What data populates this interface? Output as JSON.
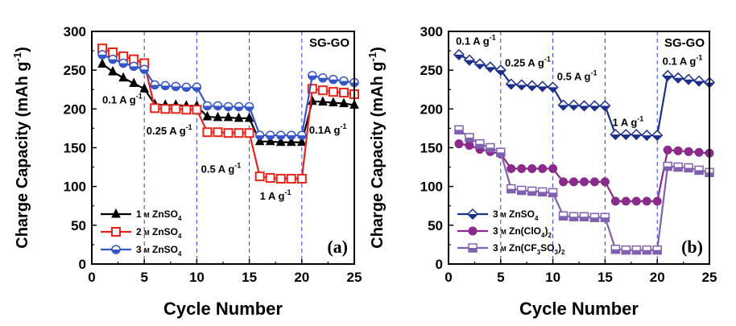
{
  "chart_data": [
    {
      "type": "line",
      "panel_label": "(a)",
      "xlabel": "Cycle Number",
      "ylabel": "Charge Capacity (mAh g",
      "ylabel_sup": "-1",
      "ylabel_end": ")",
      "xlim": [
        0,
        25
      ],
      "ylim": [
        0,
        300
      ],
      "xticks": [
        0,
        5,
        10,
        15,
        20,
        25
      ],
      "yticks": [
        0,
        50,
        100,
        150,
        200,
        250,
        300
      ],
      "vlines": [
        5,
        10,
        15,
        20
      ],
      "corner_text": "SG-GO",
      "annotations": [
        {
          "text": "0.1 A g",
          "sup": "-1",
          "x": 1.0,
          "y": 207
        },
        {
          "text": "0.25 A g",
          "sup": "-1",
          "x": 5.2,
          "y": 167
        },
        {
          "text": "0.5 A g",
          "sup": "-1",
          "x": 10.4,
          "y": 118
        },
        {
          "text": "1 A g",
          "sup": "-1",
          "x": 16.0,
          "y": 83
        },
        {
          "text": "0.1A g",
          "sup": "-1",
          "x": 20.7,
          "y": 168
        }
      ],
      "legend": [
        {
          "pre": "1 ",
          "unit": "M",
          "mid": " ZnSO",
          "sub": "4"
        },
        {
          "pre": "2 ",
          "unit": "M",
          "mid": " ZnSO",
          "sub": "4"
        },
        {
          "pre": "3 ",
          "unit": "M",
          "mid": " ZnSO",
          "sub": "4"
        }
      ],
      "series": [
        {
          "name": "1 M ZnSO4",
          "color": "#000000",
          "marker": "triangle",
          "x": [
            1,
            2,
            3,
            4,
            5,
            6,
            7,
            8,
            9,
            10,
            11,
            12,
            13,
            14,
            15,
            16,
            17,
            18,
            19,
            20,
            21,
            22,
            23,
            24,
            25
          ],
          "y": [
            258,
            248,
            240,
            233,
            226,
            206,
            205,
            205,
            204,
            204,
            190,
            189,
            189,
            188,
            188,
            158,
            158,
            157,
            157,
            157,
            210,
            209,
            208,
            207,
            205
          ]
        },
        {
          "name": "2 M ZnSO4",
          "color": "#e8231a",
          "marker": "square",
          "x": [
            1,
            2,
            3,
            4,
            5,
            6,
            7,
            8,
            9,
            10,
            11,
            12,
            13,
            14,
            15,
            16,
            17,
            18,
            19,
            20,
            21,
            22,
            23,
            24,
            25
          ],
          "y": [
            278,
            273,
            268,
            264,
            259,
            201,
            200,
            200,
            199,
            199,
            170,
            170,
            169,
            169,
            169,
            113,
            111,
            110,
            110,
            110,
            226,
            224,
            222,
            221,
            219
          ]
        },
        {
          "name": "3 M ZnSO4",
          "color": "#3556c8",
          "marker": "circle-half",
          "x": [
            1,
            2,
            3,
            4,
            5,
            6,
            7,
            8,
            9,
            10,
            11,
            12,
            13,
            14,
            15,
            16,
            17,
            18,
            19,
            20,
            21,
            22,
            23,
            24,
            25
          ],
          "y": [
            270,
            264,
            259,
            255,
            251,
            231,
            230,
            229,
            228,
            228,
            204,
            204,
            203,
            203,
            203,
            166,
            166,
            166,
            166,
            166,
            243,
            240,
            238,
            236,
            234
          ]
        }
      ]
    },
    {
      "type": "line",
      "panel_label": "(b)",
      "xlabel": "Cycle Number",
      "ylabel": "Charge Capacity (mAh g",
      "ylabel_sup": "-1",
      "ylabel_end": ")",
      "xlim": [
        0,
        25
      ],
      "ylim": [
        0,
        300
      ],
      "xticks": [
        0,
        5,
        10,
        15,
        20,
        25
      ],
      "yticks": [
        0,
        50,
        100,
        150,
        200,
        250,
        300
      ],
      "vlines": [
        5,
        10,
        15,
        20
      ],
      "corner_text": "SG-GO",
      "annotations": [
        {
          "text": "0.1 A g",
          "sup": "-1",
          "x": 0.7,
          "y": 283
        },
        {
          "text": "0.25 A g",
          "sup": "-1",
          "x": 5.4,
          "y": 255
        },
        {
          "text": "0.5 A g",
          "sup": "-1",
          "x": 10.4,
          "y": 237
        },
        {
          "text": "1 A g",
          "sup": "-1",
          "x": 15.7,
          "y": 178
        },
        {
          "text": "0.1 A g",
          "sup": "-1",
          "x": 20.5,
          "y": 257
        }
      ],
      "legend": [
        {
          "pre": "3 ",
          "unit": "M",
          "mid": " ZnSO",
          "sub": "4",
          "post": ""
        },
        {
          "pre": "3 ",
          "unit": "M",
          "mid": " Zn(ClO",
          "sub": "4",
          "post": ")",
          "sub2": "2"
        },
        {
          "pre": "3 ",
          "unit": "M",
          "mid": " Zn(CF",
          "sub": "3",
          "post": "SO",
          "sub2": "3",
          "post2": ")",
          "sub3": "2"
        }
      ],
      "series": [
        {
          "name": "3 M ZnSO4",
          "color": "#1c2f8a",
          "marker": "diamond-half",
          "x": [
            1,
            2,
            3,
            4,
            5,
            6,
            7,
            8,
            9,
            10,
            11,
            12,
            13,
            14,
            15,
            16,
            17,
            18,
            19,
            20,
            21,
            22,
            23,
            24,
            25
          ],
          "y": [
            270,
            263,
            258,
            254,
            250,
            232,
            231,
            230,
            229,
            228,
            205,
            205,
            204,
            204,
            204,
            167,
            167,
            167,
            166,
            166,
            243,
            240,
            238,
            236,
            234
          ]
        },
        {
          "name": "3 M Zn(ClO4)2",
          "color": "#8a2a8a",
          "marker": "circle",
          "x": [
            1,
            2,
            3,
            4,
            5,
            6,
            7,
            8,
            9,
            10,
            11,
            12,
            13,
            14,
            15,
            16,
            17,
            18,
            19,
            20,
            21,
            22,
            23,
            24,
            25
          ],
          "y": [
            155,
            153,
            148,
            145,
            142,
            123,
            123,
            123,
            123,
            123,
            106,
            106,
            106,
            106,
            106,
            81,
            81,
            81,
            81,
            81,
            147,
            146,
            145,
            144,
            143
          ]
        },
        {
          "name": "3 M Zn(CF3SO3)2",
          "color": "#8060b0",
          "marker": "square-half",
          "x": [
            1,
            2,
            3,
            4,
            5,
            6,
            7,
            8,
            9,
            10,
            11,
            12,
            13,
            14,
            15,
            16,
            17,
            18,
            19,
            20,
            21,
            22,
            23,
            24,
            25
          ],
          "y": [
            173,
            163,
            155,
            150,
            144,
            97,
            95,
            94,
            93,
            92,
            62,
            61,
            61,
            60,
            60,
            19,
            18,
            18,
            18,
            18,
            126,
            125,
            124,
            121,
            118
          ]
        }
      ]
    }
  ]
}
